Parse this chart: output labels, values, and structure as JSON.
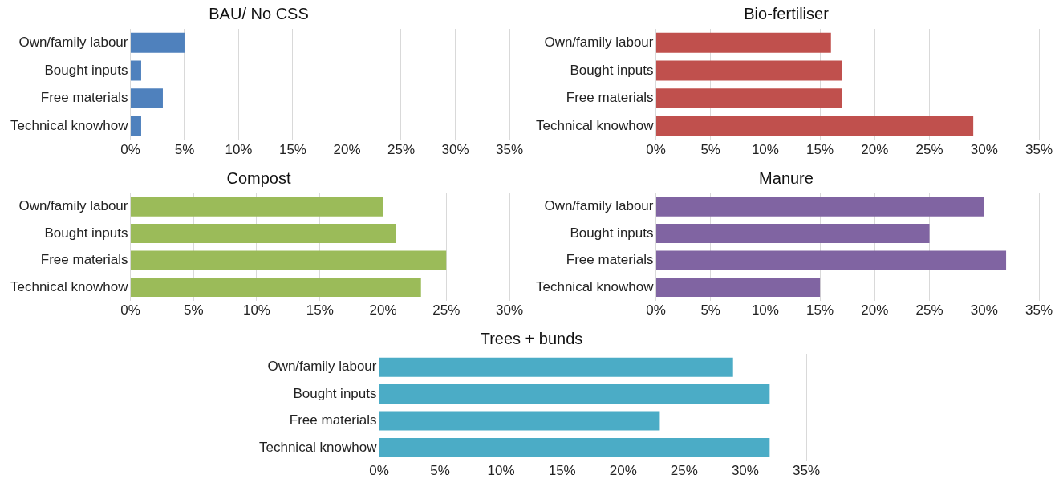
{
  "chart_data": [
    {
      "type": "bar",
      "orientation": "horizontal",
      "title": "BAU/ No CSS",
      "categories": [
        "Own/family labour",
        "Bought inputs",
        "Free materials",
        "Technical knowhow"
      ],
      "series": [
        {
          "color": "#4f81bd",
          "values": [
            5,
            1,
            3,
            1
          ]
        }
      ],
      "xlim": [
        0,
        35
      ],
      "xticks": [
        {
          "value": 0,
          "label": "0%"
        },
        {
          "value": 5,
          "label": "5%"
        },
        {
          "value": 10,
          "label": "10%"
        },
        {
          "value": 15,
          "label": "15%"
        },
        {
          "value": 20,
          "label": "20%"
        },
        {
          "value": 25,
          "label": "25%"
        },
        {
          "value": 30,
          "label": "30%"
        },
        {
          "value": 35,
          "label": "35%"
        }
      ],
      "grid": "x",
      "legend": false
    },
    {
      "type": "bar",
      "orientation": "horizontal",
      "title": "Bio-fertiliser",
      "categories": [
        "Own/family labour",
        "Bought inputs",
        "Free materials",
        "Technical knowhow"
      ],
      "series": [
        {
          "color": "#c0504d",
          "values": [
            16,
            17,
            17,
            29
          ]
        }
      ],
      "xlim": [
        0,
        35
      ],
      "xticks": [
        {
          "value": 0,
          "label": "0%"
        },
        {
          "value": 5,
          "label": "5%"
        },
        {
          "value": 10,
          "label": "10%"
        },
        {
          "value": 15,
          "label": "15%"
        },
        {
          "value": 20,
          "label": "20%"
        },
        {
          "value": 25,
          "label": "25%"
        },
        {
          "value": 30,
          "label": "30%"
        },
        {
          "value": 35,
          "label": "35%"
        }
      ],
      "grid": "x",
      "legend": false
    },
    {
      "type": "bar",
      "orientation": "horizontal",
      "title": "Compost",
      "categories": [
        "Own/family labour",
        "Bought inputs",
        "Free materials",
        "Technical knowhow"
      ],
      "series": [
        {
          "color": "#9bbb59",
          "values": [
            20,
            21,
            25,
            23
          ]
        }
      ],
      "xlim": [
        0,
        30
      ],
      "xticks": [
        {
          "value": 0,
          "label": "0%"
        },
        {
          "value": 5,
          "label": "5%"
        },
        {
          "value": 10,
          "label": "10%"
        },
        {
          "value": 15,
          "label": "15%"
        },
        {
          "value": 20,
          "label": "20%"
        },
        {
          "value": 25,
          "label": "25%"
        },
        {
          "value": 30,
          "label": "30%"
        }
      ],
      "grid": "x",
      "legend": false
    },
    {
      "type": "bar",
      "orientation": "horizontal",
      "title": "Manure",
      "categories": [
        "Own/family labour",
        "Bought inputs",
        "Free materials",
        "Technical knowhow"
      ],
      "series": [
        {
          "color": "#8064a2",
          "values": [
            30,
            25,
            32,
            15
          ]
        }
      ],
      "xlim": [
        0,
        35
      ],
      "xticks": [
        {
          "value": 0,
          "label": "0%"
        },
        {
          "value": 5,
          "label": "5%"
        },
        {
          "value": 10,
          "label": "10%"
        },
        {
          "value": 15,
          "label": "15%"
        },
        {
          "value": 20,
          "label": "20%"
        },
        {
          "value": 25,
          "label": "25%"
        },
        {
          "value": 30,
          "label": "30%"
        },
        {
          "value": 35,
          "label": "35%"
        }
      ],
      "grid": "x",
      "legend": false
    },
    {
      "type": "bar",
      "orientation": "horizontal",
      "title": "Trees + bunds",
      "categories": [
        "Own/family labour",
        "Bought inputs",
        "Free materials",
        "Technical knowhow"
      ],
      "series": [
        {
          "color": "#4bacc6",
          "values": [
            29,
            32,
            23,
            32
          ]
        }
      ],
      "xlim": [
        0,
        35
      ],
      "xticks": [
        {
          "value": 0,
          "label": "0%"
        },
        {
          "value": 5,
          "label": "5%"
        },
        {
          "value": 10,
          "label": "10%"
        },
        {
          "value": 15,
          "label": "15%"
        },
        {
          "value": 20,
          "label": "20%"
        },
        {
          "value": 25,
          "label": "25%"
        },
        {
          "value": 30,
          "label": "30%"
        },
        {
          "value": 35,
          "label": "35%"
        }
      ],
      "grid": "x",
      "legend": false
    }
  ]
}
